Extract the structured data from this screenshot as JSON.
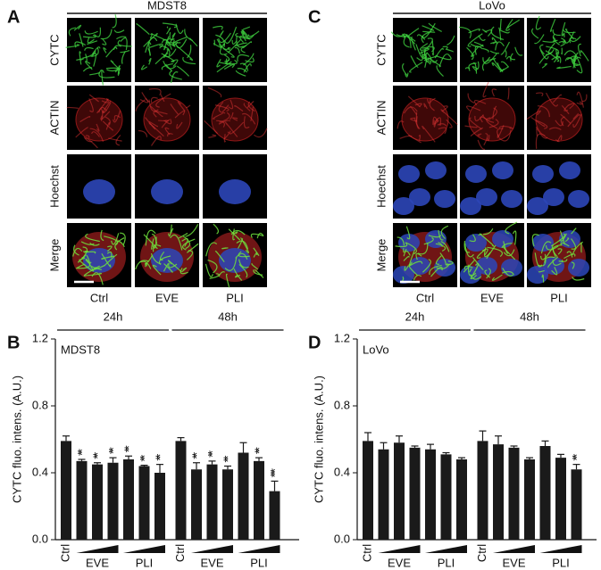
{
  "panels": [
    {
      "letter": "A",
      "title": "MDST8",
      "rows": [
        "CYTC",
        "ACTIN",
        "Hoechst",
        "Merge"
      ],
      "columns": [
        "Ctrl",
        "EVE",
        "PLI"
      ]
    },
    {
      "letter": "C",
      "title": "LoVo",
      "rows": [
        "CYTC",
        "ACTIN",
        "Hoechst",
        "Merge"
      ],
      "columns": [
        "Ctrl",
        "EVE",
        "PLI"
      ]
    }
  ],
  "chart_data": [
    {
      "type": "bar",
      "letter": "B",
      "label": "MDST8",
      "ylabel": "CYTC fluo. intens. (A.U.)",
      "groups": [
        "24h",
        "48h"
      ],
      "categories": [
        "Ctrl",
        null,
        "EVE",
        null,
        null,
        "PLI",
        null,
        "Ctrl",
        null,
        "EVE",
        null,
        null,
        "PLI",
        null
      ],
      "series": [
        {
          "color": "#1a1a1a",
          "values": [
            0.59,
            0.47,
            0.45,
            0.46,
            0.48,
            0.44,
            0.4,
            0.59,
            0.42,
            0.45,
            0.42,
            0.52,
            0.47,
            0.29
          ],
          "errors": [
            0.03,
            0.01,
            0.01,
            0.03,
            0.02,
            0.005,
            0.05,
            0.02,
            0.04,
            0.02,
            0.02,
            0.06,
            0.02,
            0.06
          ]
        }
      ],
      "annotations": [
        {
          "bar": 1,
          "label": "**"
        },
        {
          "bar": 2,
          "label": "**"
        },
        {
          "bar": 3,
          "label": "**"
        },
        {
          "bar": 4,
          "label": "**"
        },
        {
          "bar": 5,
          "label": "**"
        },
        {
          "bar": 6,
          "label": "**"
        },
        {
          "bar": 8,
          "label": "**"
        },
        {
          "bar": 9,
          "label": "**"
        },
        {
          "bar": 10,
          "label": "**"
        },
        {
          "bar": 12,
          "label": "**"
        },
        {
          "bar": 13,
          "label": "***"
        }
      ],
      "ylim": [
        0,
        1.2
      ],
      "yticks": [
        {
          "value": 0,
          "label": "0.0"
        },
        0.4,
        0.8,
        1.2
      ]
    },
    {
      "type": "bar",
      "letter": "D",
      "label": "LoVo",
      "ylabel": "CYTC fluo. intens. (A.U.)",
      "groups": [
        "24h",
        "48h"
      ],
      "categories": [
        "Ctrl",
        null,
        "EVE",
        null,
        null,
        "PLI",
        null,
        "Ctrl",
        null,
        "EVE",
        null,
        null,
        "PLI",
        null
      ],
      "series": [
        {
          "color": "#1a1a1a",
          "values": [
            0.59,
            0.54,
            0.58,
            0.55,
            0.54,
            0.51,
            0.48,
            0.59,
            0.57,
            0.55,
            0.48,
            0.56,
            0.49,
            0.42
          ],
          "errors": [
            0.05,
            0.04,
            0.04,
            0.01,
            0.03,
            0.01,
            0.01,
            0.06,
            0.05,
            0.01,
            0.01,
            0.03,
            0.02,
            0.03
          ]
        }
      ],
      "annotations": [
        {
          "bar": 13,
          "label": "**"
        }
      ],
      "ylim": [
        0,
        1.2
      ],
      "yticks": [
        {
          "value": 0,
          "label": "0.0"
        },
        0.4,
        0.8,
        1.2
      ]
    }
  ]
}
